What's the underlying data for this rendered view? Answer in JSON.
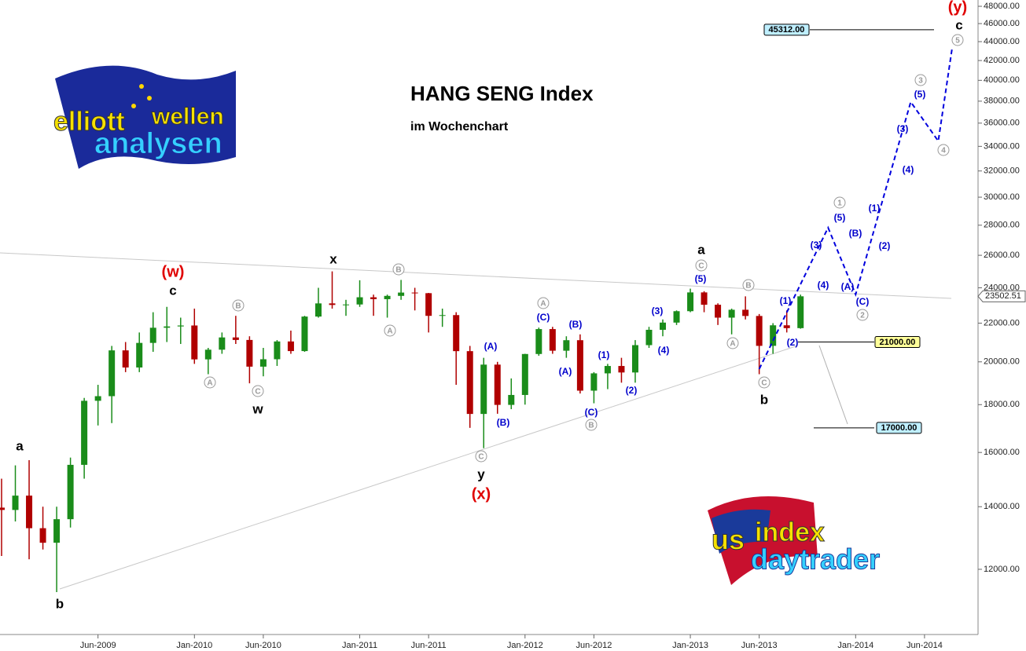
{
  "chart_data": {
    "type": "candlestick",
    "title": "HANG SENG Index",
    "subtitle": "im Wochenchart",
    "x": [
      "2008-11",
      "2008-12",
      "2009-01",
      "2009-02",
      "2009-03",
      "2009-04",
      "2009-05",
      "2009-06",
      "2009-07",
      "2009-08",
      "2009-09",
      "2009-10",
      "2009-11",
      "2009-12",
      "2010-01",
      "2010-02",
      "2010-03",
      "2010-04",
      "2010-05",
      "2010-06",
      "2010-07",
      "2010-08",
      "2010-09",
      "2010-10",
      "2010-11",
      "2010-12",
      "2011-01",
      "2011-02",
      "2011-03",
      "2011-04",
      "2011-05",
      "2011-06",
      "2011-07",
      "2011-08",
      "2011-09",
      "2011-10",
      "2011-11",
      "2011-12",
      "2012-01",
      "2012-02",
      "2012-03",
      "2012-04",
      "2012-05",
      "2012-06",
      "2012-07",
      "2012-08",
      "2012-09",
      "2012-10",
      "2012-11",
      "2012-12",
      "2013-01",
      "2013-02",
      "2013-03",
      "2013-04",
      "2013-05",
      "2013-06",
      "2013-07",
      "2013-08",
      "2013-09"
    ],
    "open": [
      13968,
      13888,
      14387,
      13278,
      12811,
      13576,
      15520,
      18171,
      18379,
      20573,
      19724,
      20955,
      21752,
      21822,
      21873,
      20122,
      20608,
      21239,
      21108,
      19765,
      20129,
      21030,
      20537,
      22359,
      23096,
      23008,
      23035,
      23447,
      23338,
      23527,
      23720,
      23684,
      22398,
      22440,
      20534,
      17592,
      19864,
      17989,
      18434,
      20390,
      21680,
      20556,
      21095,
      18630,
      19441,
      19797,
      19483,
      20840,
      21642,
      22030,
      22657,
      23729,
      23020,
      22300,
      22737,
      22392,
      20803,
      21883,
      21731
    ],
    "high": [
      15000,
      15500,
      15700,
      14000,
      14000,
      15800,
      18300,
      18900,
      20800,
      21000,
      21500,
      22600,
      22900,
      22300,
      22800,
      20700,
      21500,
      22400,
      21300,
      20700,
      21100,
      21600,
      22400,
      24000,
      24990,
      23300,
      24450,
      23600,
      23600,
      24470,
      24000,
      23700,
      22800,
      22600,
      20800,
      20200,
      20000,
      19200,
      20400,
      21760,
      21800,
      21300,
      21400,
      19500,
      19900,
      20200,
      21100,
      21800,
      22200,
      22700,
      23950,
      23800,
      23100,
      22800,
      23500,
      22500,
      22000,
      22700,
      23600
    ],
    "low": [
      12400,
      13500,
      12300,
      12600,
      11345,
      13300,
      15000,
      17100,
      17200,
      19500,
      19500,
      20500,
      21000,
      20900,
      19900,
      19400,
      20400,
      20900,
      18970,
      19300,
      19800,
      20400,
      20500,
      22300,
      22800,
      22400,
      22900,
      22400,
      22300,
      23300,
      22700,
      21500,
      21800,
      18900,
      17000,
      16170,
      17600,
      17800,
      18000,
      20300,
      20400,
      20200,
      18500,
      18060,
      18700,
      19000,
      19000,
      20700,
      21300,
      21900,
      22600,
      22600,
      21900,
      21400,
      22200,
      19400,
      20400,
      21500,
      21700
    ],
    "close": [
      13888,
      14387,
      13278,
      12811,
      13576,
      15520,
      18171,
      18379,
      20573,
      19724,
      20955,
      21752,
      21822,
      21873,
      20122,
      20608,
      21239,
      21108,
      19765,
      20129,
      21030,
      20537,
      22359,
      23096,
      23008,
      23035,
      23447,
      23338,
      23527,
      23720,
      23684,
      22398,
      22440,
      20534,
      17592,
      19864,
      17989,
      18434,
      20390,
      21680,
      20556,
      21095,
      18630,
      19441,
      19797,
      19483,
      20840,
      21642,
      22030,
      22657,
      23729,
      23020,
      22300,
      22737,
      22392,
      20803,
      21883,
      21731,
      23502.51
    ],
    "up_color": "#1a8c1a",
    "down_color": "#b00000",
    "log_y": true,
    "xlim": [
      "2008-11",
      "2014-10"
    ],
    "xticks": [
      {
        "value": "2009-06",
        "label": "Jun-2009"
      },
      {
        "value": "2010-01",
        "label": "Jan-2010"
      },
      {
        "value": "2010-06",
        "label": "Jun-2010"
      },
      {
        "value": "2011-01",
        "label": "Jan-2011"
      },
      {
        "value": "2011-06",
        "label": "Jun-2011"
      },
      {
        "value": "2012-01",
        "label": "Jan-2012"
      },
      {
        "value": "2012-06",
        "label": "Jun-2012"
      },
      {
        "value": "2013-01",
        "label": "Jan-2013"
      },
      {
        "value": "2013-06",
        "label": "Jun-2013"
      },
      {
        "value": "2014-01",
        "label": "Jan-2014"
      },
      {
        "value": "2014-06",
        "label": "Jun-2014"
      }
    ],
    "ylim": [
      10220,
      48750
    ],
    "yticks": [
      {
        "value": 12000,
        "label": "12000.00"
      },
      {
        "value": 14000,
        "label": "14000.00"
      },
      {
        "value": 16000,
        "label": "16000.00"
      },
      {
        "value": 18000,
        "label": "18000.00"
      },
      {
        "value": 20000,
        "label": "20000.00"
      },
      {
        "value": 22000,
        "label": "22000.00"
      },
      {
        "value": 24000,
        "label": "24000.00"
      },
      {
        "value": 26000,
        "label": "26000.00"
      },
      {
        "value": 28000,
        "label": "28000.00"
      },
      {
        "value": 30000,
        "label": "30000.00"
      },
      {
        "value": 32000,
        "label": "32000.00"
      },
      {
        "value": 34000,
        "label": "34000.00"
      },
      {
        "value": 36000,
        "label": "36000.00"
      },
      {
        "value": 38000,
        "label": "38000.00"
      },
      {
        "value": 40000,
        "label": "40000.00"
      },
      {
        "value": 42000,
        "label": "42000.00"
      },
      {
        "value": 44000,
        "label": "44000.00"
      },
      {
        "value": 46000,
        "label": "46000.00"
      },
      {
        "value": 48000,
        "label": "48000.00"
      }
    ],
    "projection": {
      "x": [
        "2013-06",
        "2013-11",
        "2014-01",
        "2014-05",
        "2014-07",
        "2014-08"
      ],
      "values": [
        19650,
        27830,
        23610,
        37930,
        34440,
        43260
      ],
      "color": "#0000dd"
    },
    "price_levels": [
      {
        "value": 45312,
        "label": "45312.00",
        "color": "#bfefff"
      },
      {
        "value": 21000,
        "label": "21000.00",
        "color": "#ffff99"
      },
      {
        "value": 17000,
        "label": "17000.00",
        "color": "#bfefff"
      }
    ],
    "wave_labels": [
      {
        "color": "#000000",
        "labels": [
          "a",
          "b",
          "c",
          "w",
          "x",
          "y",
          "a",
          "b",
          "c"
        ]
      },
      {
        "color": "#e00000",
        "labels": [
          "(w)",
          "(x)",
          "(y)"
        ]
      },
      {
        "color": "#999999",
        "circled": true,
        "labels": [
          "A",
          "C",
          "B",
          "B",
          "A",
          "A",
          "C",
          "B",
          "C",
          "A",
          "B",
          "C",
          "1",
          "2",
          "3",
          "4",
          "5"
        ]
      },
      {
        "color": "#0000cc",
        "labels": [
          "(A)",
          "(B)",
          "(C)",
          "(A)",
          "(B)",
          "(C)",
          "(1)",
          "(2)",
          "(3)",
          "(4)",
          "(5)",
          "(1)",
          "(2)",
          "(3)",
          "(4)",
          "(5)",
          "(A)",
          "(B)",
          "(C)",
          "(1)",
          "(2)",
          "(3)",
          "(4)",
          "(5)"
        ]
      }
    ]
  },
  "logos": {
    "top": [
      "elliott",
      "wellen",
      "analysen"
    ],
    "bottom": [
      "us",
      "index",
      "daytrader"
    ]
  }
}
